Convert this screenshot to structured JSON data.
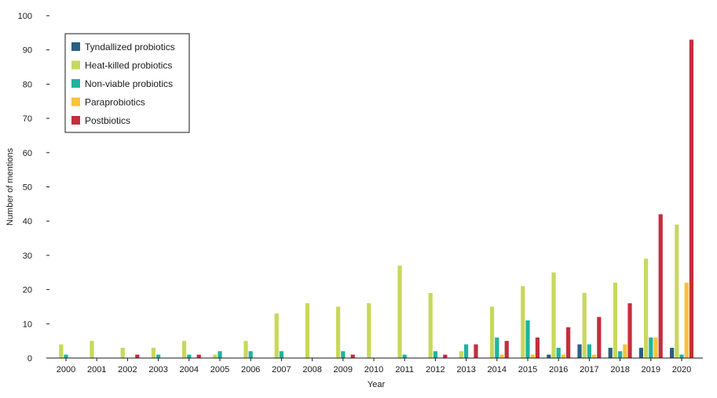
{
  "chart_data": {
    "type": "bar",
    "title": "",
    "xlabel": "Year",
    "ylabel": "Number of mentions",
    "ylim": [
      0,
      100
    ],
    "yticks": [
      0,
      10,
      20,
      30,
      40,
      50,
      60,
      70,
      80,
      90,
      100
    ],
    "grid": false,
    "legend_position": "top-left",
    "categories": [
      "2000",
      "2001",
      "2002",
      "2003",
      "2004",
      "2005",
      "2006",
      "2007",
      "2008",
      "2009",
      "2010",
      "2011",
      "2012",
      "2013",
      "2014",
      "2015",
      "2016",
      "2017",
      "2018",
      "2019",
      "2020"
    ],
    "series": [
      {
        "name": "Tyndallized probiotics",
        "color": "#2b5f85",
        "values": [
          0,
          0,
          0,
          0,
          0,
          0,
          0,
          0,
          0,
          0,
          0,
          0,
          0,
          0,
          0,
          0,
          1,
          4,
          3,
          3,
          3
        ]
      },
      {
        "name": "Heat-killed probiotics",
        "color": "#c8d85a",
        "values": [
          4,
          5,
          3,
          3,
          5,
          1,
          5,
          13,
          16,
          15,
          16,
          27,
          19,
          2,
          15,
          21,
          25,
          19,
          22,
          29,
          39
        ]
      },
      {
        "name": "Non-viable probiotics",
        "color": "#1fb3a0",
        "values": [
          1,
          0,
          0,
          1,
          1,
          2,
          2,
          2,
          0,
          2,
          0,
          1,
          2,
          4,
          6,
          11,
          3,
          4,
          2,
          6,
          1
        ]
      },
      {
        "name": "Paraprobiotics",
        "color": "#f6c437",
        "values": [
          0,
          0,
          0,
          0,
          0,
          0,
          0,
          0,
          0,
          0,
          0,
          0,
          0,
          0,
          1,
          1,
          1,
          1,
          4,
          6,
          22
        ]
      },
      {
        "name": "Postbiotics",
        "color": "#c42e3c",
        "values": [
          0,
          0,
          1,
          0,
          1,
          0,
          0,
          0,
          0,
          1,
          0,
          0,
          1,
          4,
          5,
          6,
          9,
          12,
          16,
          42,
          93
        ]
      }
    ]
  }
}
